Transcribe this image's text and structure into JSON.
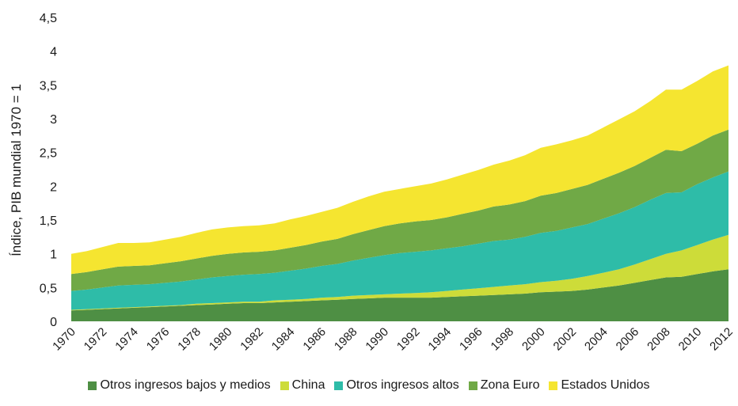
{
  "chart_data": {
    "type": "area",
    "stacked": true,
    "ylabel": "Índice,  PIB mundial 1970 = 1",
    "ylim": [
      0,
      4.5
    ],
    "yticks": [
      "0",
      "0,5",
      "1",
      "1,5",
      "2",
      "2,5",
      "3",
      "3,5",
      "4",
      "4,5"
    ],
    "yticks_values": [
      0,
      0.5,
      1,
      1.5,
      2,
      2.5,
      3,
      3.5,
      4,
      4.5
    ],
    "xticks": [
      "1970",
      "1972",
      "1974",
      "1976",
      "1978",
      "1980",
      "1982",
      "1984",
      "1986",
      "1988",
      "1990",
      "1992",
      "1994",
      "1996",
      "1998",
      "2000",
      "2002",
      "2004",
      "2006",
      "2008",
      "2010",
      "2012"
    ],
    "legend_position": "bottom",
    "x": [
      1970,
      1971,
      1972,
      1973,
      1974,
      1975,
      1976,
      1977,
      1978,
      1979,
      1980,
      1981,
      1982,
      1983,
      1984,
      1985,
      1986,
      1987,
      1988,
      1989,
      1990,
      1991,
      1992,
      1993,
      1994,
      1995,
      1996,
      1997,
      1998,
      1999,
      2000,
      2001,
      2002,
      2003,
      2004,
      2005,
      2006,
      2007,
      2008,
      2009,
      2010,
      2011,
      2012
    ],
    "series": [
      {
        "name": "Otros ingresos bajos y medios",
        "color": "#4e8f44",
        "values": [
          0.16,
          0.17,
          0.18,
          0.19,
          0.2,
          0.21,
          0.22,
          0.23,
          0.24,
          0.25,
          0.26,
          0.27,
          0.27,
          0.28,
          0.29,
          0.3,
          0.31,
          0.32,
          0.33,
          0.34,
          0.35,
          0.35,
          0.35,
          0.35,
          0.36,
          0.37,
          0.38,
          0.39,
          0.4,
          0.41,
          0.43,
          0.44,
          0.45,
          0.47,
          0.5,
          0.53,
          0.57,
          0.61,
          0.65,
          0.66,
          0.7,
          0.74,
          0.77
        ]
      },
      {
        "name": "China",
        "color": "#cddc39",
        "values": [
          0.01,
          0.01,
          0.01,
          0.01,
          0.01,
          0.01,
          0.01,
          0.01,
          0.02,
          0.02,
          0.02,
          0.02,
          0.02,
          0.03,
          0.03,
          0.03,
          0.04,
          0.04,
          0.05,
          0.05,
          0.05,
          0.06,
          0.07,
          0.08,
          0.09,
          0.1,
          0.11,
          0.12,
          0.13,
          0.14,
          0.15,
          0.16,
          0.18,
          0.2,
          0.22,
          0.24,
          0.27,
          0.31,
          0.35,
          0.39,
          0.43,
          0.47,
          0.51
        ]
      },
      {
        "name": "Otros ingresos altos",
        "color": "#2ebca8",
        "values": [
          0.28,
          0.29,
          0.31,
          0.33,
          0.33,
          0.33,
          0.34,
          0.35,
          0.36,
          0.38,
          0.39,
          0.4,
          0.41,
          0.41,
          0.43,
          0.45,
          0.47,
          0.49,
          0.52,
          0.55,
          0.58,
          0.6,
          0.61,
          0.62,
          0.63,
          0.64,
          0.66,
          0.68,
          0.68,
          0.7,
          0.73,
          0.74,
          0.76,
          0.77,
          0.8,
          0.83,
          0.85,
          0.88,
          0.9,
          0.86,
          0.9,
          0.92,
          0.94
        ]
      },
      {
        "name": "Zona Euro",
        "color": "#70a946",
        "values": [
          0.25,
          0.26,
          0.27,
          0.28,
          0.28,
          0.28,
          0.29,
          0.3,
          0.31,
          0.32,
          0.33,
          0.33,
          0.33,
          0.33,
          0.34,
          0.35,
          0.36,
          0.37,
          0.39,
          0.41,
          0.43,
          0.44,
          0.45,
          0.45,
          0.46,
          0.48,
          0.49,
          0.51,
          0.52,
          0.53,
          0.55,
          0.56,
          0.57,
          0.58,
          0.59,
          0.6,
          0.61,
          0.62,
          0.64,
          0.61,
          0.6,
          0.62,
          0.62
        ]
      },
      {
        "name": "Estados Unidos",
        "color": "#f5e530",
        "values": [
          0.3,
          0.31,
          0.33,
          0.35,
          0.34,
          0.34,
          0.35,
          0.36,
          0.38,
          0.39,
          0.39,
          0.39,
          0.39,
          0.4,
          0.42,
          0.43,
          0.44,
          0.46,
          0.48,
          0.5,
          0.51,
          0.51,
          0.52,
          0.54,
          0.56,
          0.58,
          0.6,
          0.62,
          0.65,
          0.68,
          0.71,
          0.72,
          0.72,
          0.73,
          0.76,
          0.79,
          0.81,
          0.84,
          0.89,
          0.91,
          0.93,
          0.95,
          0.95
        ]
      }
    ]
  }
}
